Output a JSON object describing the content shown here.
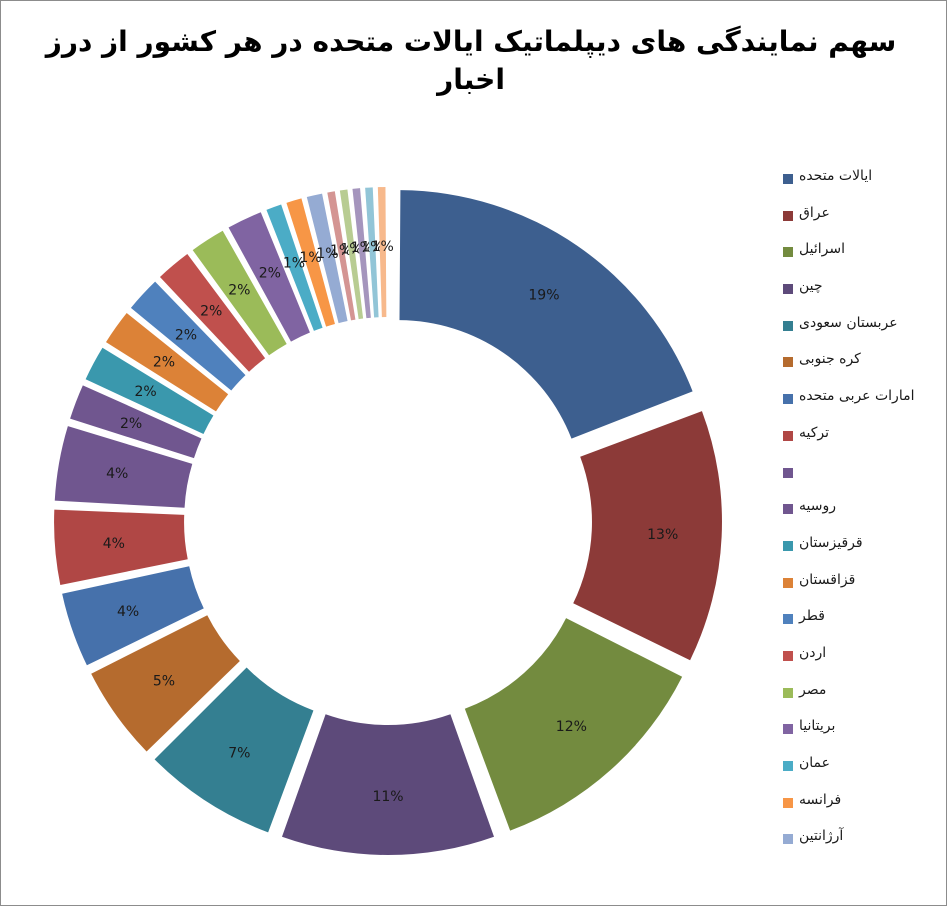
{
  "chart_data": {
    "type": "pie",
    "style": "exploded doughnut",
    "title": "سهم نمایندگی های دیپلماتیک ایالات متحده در هر کشور از درز اخبار",
    "legend_position": "right",
    "label_format": "percent",
    "slices": [
      {
        "name": "ایالات متحده",
        "value": 19,
        "label": "19%",
        "color": "#3d5f8f"
      },
      {
        "name": "عراق",
        "value": 13,
        "label": "13%",
        "color": "#8c3a38"
      },
      {
        "name": "اسرائیل",
        "value": 12,
        "label": "12%",
        "color": "#738b3f"
      },
      {
        "name": "چین",
        "value": 11,
        "label": "11%",
        "color": "#5d4a7a"
      },
      {
        "name": "عربستان سعودی",
        "value": 7,
        "label": "7%",
        "color": "#347f91"
      },
      {
        "name": "کره جنوبی",
        "value": 5,
        "label": "5%",
        "color": "#b56b2e"
      },
      {
        "name": "امارات عربی متحده",
        "value": 4,
        "label": "4%",
        "color": "#4671ab"
      },
      {
        "name": "ترکیه",
        "value": 4,
        "label": "4%",
        "color": "#b04745"
      },
      {
        "name": "",
        "value": 4,
        "label": "4%",
        "color": "#70568f"
      },
      {
        "name": "روسیه",
        "value": 2,
        "label": "2%",
        "color": "#70568f"
      },
      {
        "name": "قرقیزستان",
        "value": 2,
        "label": "2%",
        "color": "#3a98ad"
      },
      {
        "name": "قزاقستان",
        "value": 2,
        "label": "2%",
        "color": "#dc8237"
      },
      {
        "name": "قطر",
        "value": 2,
        "label": "2%",
        "color": "#4f81bd"
      },
      {
        "name": "اردن",
        "value": 2,
        "label": "2%",
        "color": "#c0504d"
      },
      {
        "name": "مصر",
        "value": 2,
        "label": "2%",
        "color": "#9bbb59"
      },
      {
        "name": "بریتانیا",
        "value": 2,
        "label": "2%",
        "color": "#8064a2"
      },
      {
        "name": "عمان",
        "value": 1,
        "label": "1%",
        "color": "#4bacc6"
      },
      {
        "name": "فرانسه",
        "value": 1,
        "label": "1%",
        "color": "#f79646"
      },
      {
        "name": "آرژانتین",
        "value": 1,
        "label": "1%",
        "color": "#95abd3"
      },
      {
        "name": "",
        "value": 0.6,
        "label": "1%",
        "color": "#d49593"
      },
      {
        "name": "",
        "value": 0.6,
        "label": "1%",
        "color": "#b8cc92"
      },
      {
        "name": "",
        "value": 0.6,
        "label": "1%",
        "color": "#a595bd"
      },
      {
        "name": "",
        "value": 0.6,
        "label": "1%",
        "color": "#92c5d7"
      },
      {
        "name": "",
        "value": 0.6,
        "label": "1%",
        "color": "#f7b98c"
      }
    ]
  }
}
